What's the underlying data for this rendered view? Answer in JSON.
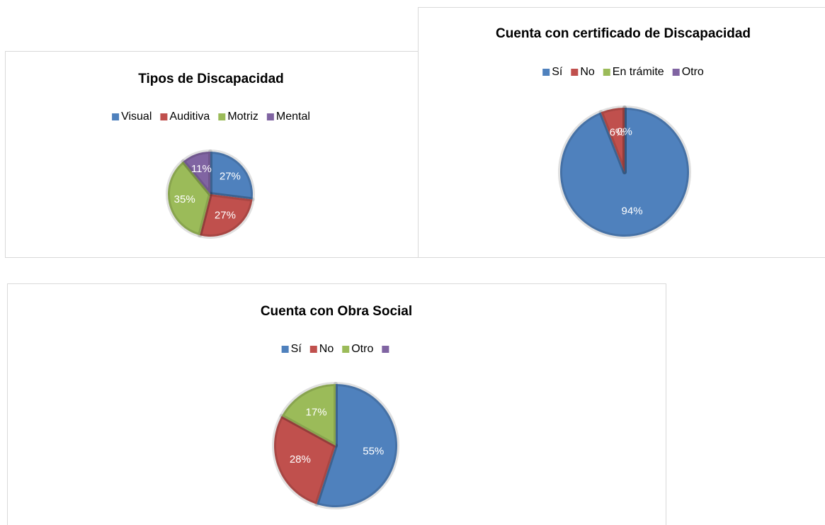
{
  "chart_data": [
    {
      "type": "pie",
      "title": "Tipos de Discapacidad",
      "categories": [
        "Visual",
        "Auditiva",
        "Motriz",
        "Mental"
      ],
      "values": [
        27,
        27,
        35,
        11
      ],
      "value_labels": [
        "27%",
        "27%",
        "35%",
        "11%"
      ],
      "colors": [
        "#4f81bd",
        "#c0504d",
        "#9bbb59",
        "#8064a2"
      ]
    },
    {
      "type": "pie",
      "title": "Cuenta con certificado de Discapacidad",
      "categories": [
        "Sí",
        "No",
        "En trámite",
        "Otro"
      ],
      "values": [
        94,
        6,
        0,
        null
      ],
      "value_labels": [
        "94%",
        "6%",
        "0%",
        null
      ],
      "colors": [
        "#4f81bd",
        "#c0504d",
        "#9bbb59",
        "#8064a2"
      ]
    },
    {
      "type": "pie",
      "title": "Cuenta con Obra Social",
      "categories": [
        "Sí",
        "No",
        "Otro",
        null
      ],
      "values": [
        55,
        28,
        17,
        null
      ],
      "value_labels": [
        "55%",
        "28%",
        "17%",
        null
      ],
      "colors": [
        "#4f81bd",
        "#c0504d",
        "#9bbb59",
        "#8064a2"
      ]
    }
  ]
}
